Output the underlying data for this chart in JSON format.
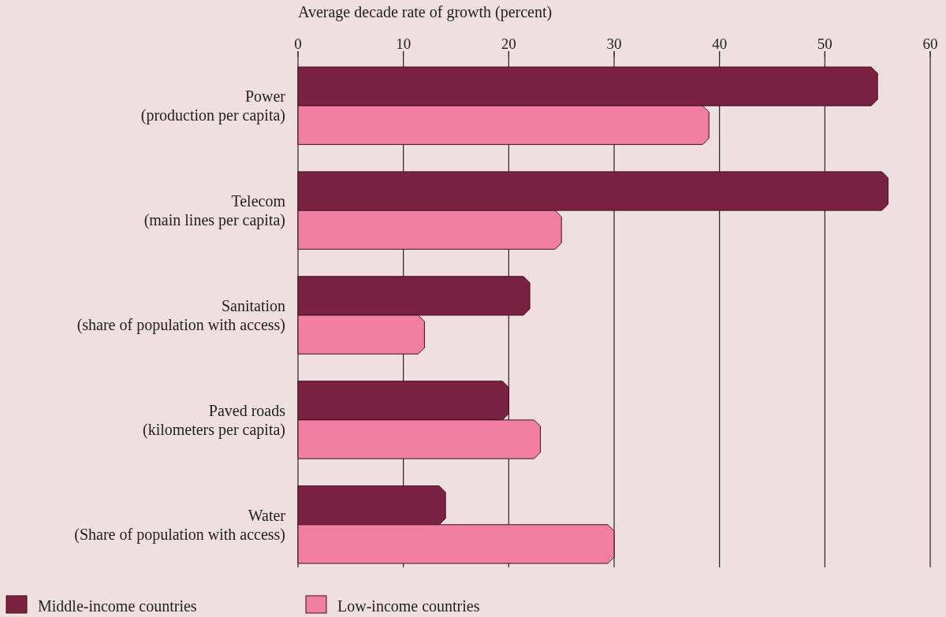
{
  "chart_data": {
    "type": "bar",
    "orientation": "horizontal",
    "xlabel": "Average decade rate of growth (percent)",
    "categories": [
      "Power\n(production per capita)",
      "Telecom\n(main lines per capita)",
      "Sanitation\n(share of population with access)",
      "Paved roads\n(kilometers per capita)",
      "Water\n(Share of population with access)"
    ],
    "series": [
      {
        "name": "Middle-income countries",
        "color": "#7b2142",
        "values": [
          55,
          56,
          22,
          20,
          14
        ]
      },
      {
        "name": "Low-income countries",
        "color": "#f27fa3",
        "values": [
          39,
          25,
          12,
          23,
          30
        ]
      }
    ],
    "xlim": [
      0,
      60
    ],
    "xticks": [
      0,
      10,
      20,
      30,
      40,
      50,
      60
    ],
    "grid": "x",
    "legend": "bottom left"
  }
}
